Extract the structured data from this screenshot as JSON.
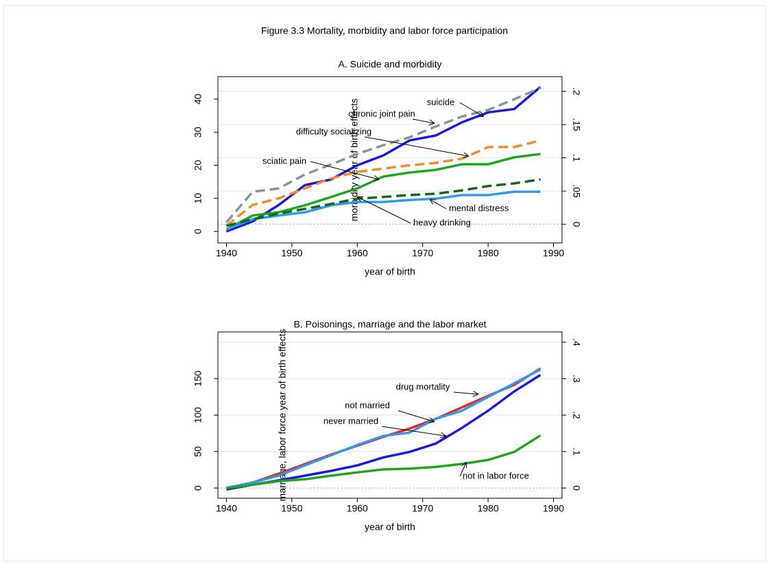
{
  "title": "Figure 3.3 Mortality, morbidity and labor force participation",
  "chart_data": [
    {
      "type": "line",
      "title": "A.  Suicide and morbidity",
      "xlabel": "year of birth",
      "ylabel": "morbidity year of birth effects",
      "x": [
        1940,
        1944,
        1948,
        1952,
        1956,
        1960,
        1964,
        1968,
        1972,
        1976,
        1980,
        1984,
        1988
      ],
      "xlim": [
        1938.7,
        1991.3
      ],
      "xticks": [
        1940,
        1950,
        1960,
        1970,
        1980,
        1990
      ],
      "ylim": [
        -3.5,
        46.8
      ],
      "yticks": [
        0,
        10,
        20,
        30,
        40
      ],
      "y2lim": [
        -0.028,
        0.222
      ],
      "y2ticks": [
        0,
        {
          "value": 0.05,
          "label": ".05"
        },
        {
          "value": 0.1,
          "label": ".1"
        },
        {
          "value": 0.15,
          "label": ".15"
        },
        {
          "value": 0.2,
          "label": ".2"
        }
      ],
      "grid": true,
      "series": [
        {
          "name": "chronic joint pain",
          "color": "#1a1ad8",
          "values": [
            0,
            3,
            8,
            14,
            15.7,
            20,
            23,
            27.5,
            29,
            33,
            36,
            37,
            43.7
          ]
        },
        {
          "name": "sciatic pain",
          "color": "#f58a2c",
          "dash": true,
          "values": [
            1.7,
            8,
            10,
            13,
            16,
            18,
            19,
            20,
            20.7,
            22,
            25.5,
            25.5,
            27.5
          ]
        },
        {
          "name": "difficulty socializing",
          "color": "#1fa51f",
          "values": [
            0.6,
            4.8,
            5.8,
            7.9,
            10.4,
            13,
            16.6,
            17.8,
            18.6,
            20.3,
            20.3,
            22.4,
            23.4
          ]
        },
        {
          "name": "mental distress",
          "color": "#3399ee",
          "values": [
            0.6,
            3.7,
            4.8,
            5.8,
            7.9,
            8.9,
            8.9,
            9.5,
            9.9,
            11,
            11,
            12,
            12
          ]
        },
        {
          "name": "heavy drinking",
          "color": "#166816",
          "dash": true,
          "values": [
            1.7,
            3.7,
            5.4,
            6.8,
            8.3,
            9.9,
            10.4,
            11,
            11.4,
            12.4,
            13.7,
            14.5,
            15.7
          ]
        },
        {
          "name": "suicide",
          "color": "#7f9a94",
          "dash": true,
          "axis": "y2",
          "values": [
            0.003,
            0.049,
            0.054,
            0.075,
            0.09,
            0.106,
            0.119,
            0.131,
            0.147,
            0.162,
            0.172,
            0.188,
            0.205
          ]
        }
      ]
    },
    {
      "type": "line",
      "title": "B.  Poisonings, marriage and the labor market",
      "xlabel": "year of birth",
      "ylabel": "marriage, labor force year of birth effects",
      "x": [
        1940,
        1944,
        1948,
        1952,
        1956,
        1960,
        1964,
        1968,
        1972,
        1976,
        1980,
        1984,
        1988
      ],
      "xlim": [
        1938.7,
        1991.3
      ],
      "xticks": [
        1940,
        1950,
        1960,
        1970,
        1980,
        1990
      ],
      "ylim": [
        -14,
        214
      ],
      "yticks": [
        0,
        50,
        100,
        150
      ],
      "y2lim": [
        -0.028,
        0.428
      ],
      "y2ticks": [
        0,
        {
          "value": 0.1,
          "label": ".1"
        },
        {
          "value": 0.2,
          "label": ".2"
        },
        {
          "value": 0.3,
          "label": ".3"
        },
        {
          "value": 0.4,
          "label": ".4"
        }
      ],
      "grid": true,
      "series": [
        {
          "name": "drug mortality",
          "color": "#e8281e",
          "values": [
            0,
            7.5,
            19.7,
            32.8,
            45.9,
            58.1,
            70.3,
            81.5,
            94.7,
            110.6,
            126.5,
            141.5,
            164
          ]
        },
        {
          "name": "not married",
          "color": "#3399ee",
          "axis": "y2",
          "values": [
            0,
            0.015,
            0.034,
            0.062,
            0.09,
            0.118,
            0.143,
            0.152,
            0.19,
            0.212,
            0.25,
            0.287,
            0.325
          ]
        },
        {
          "name": "never married",
          "color": "#1a1ad8",
          "axis": "y2",
          "values": [
            -0.004,
            0.009,
            0.021,
            0.034,
            0.047,
            0.062,
            0.084,
            0.099,
            0.122,
            0.165,
            0.212,
            0.265,
            0.31
          ]
        },
        {
          "name": "not in labor force",
          "color": "#1fa51f",
          "axis": "y2",
          "values": [
            0,
            0.009,
            0.019,
            0.024,
            0.034,
            0.043,
            0.051,
            0.053,
            0.058,
            0.066,
            0.077,
            0.099,
            0.144
          ]
        }
      ]
    }
  ]
}
